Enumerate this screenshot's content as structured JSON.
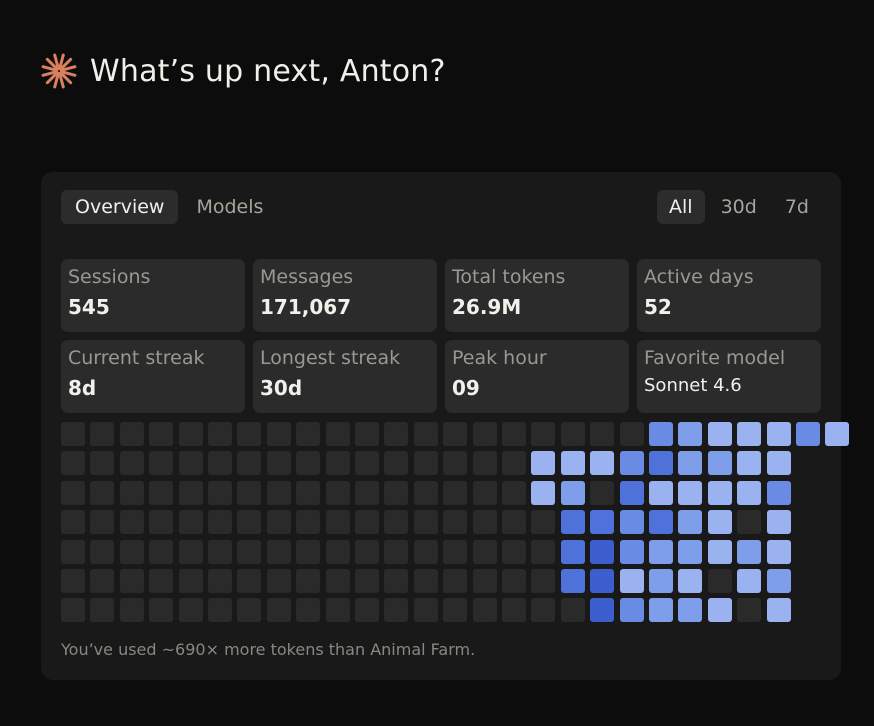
{
  "greeting": {
    "icon": "sparkle-icon",
    "accent": "#d9805f",
    "text": "What’s up next, Anton?"
  },
  "tabs": [
    {
      "label": "Overview",
      "active": true
    },
    {
      "label": "Models",
      "active": false
    }
  ],
  "range": [
    {
      "label": "All",
      "active": true
    },
    {
      "label": "30d",
      "active": false
    },
    {
      "label": "7d",
      "active": false
    }
  ],
  "stats": [
    {
      "label": "Sessions",
      "value": "545"
    },
    {
      "label": "Messages",
      "value": "171,067"
    },
    {
      "label": "Total tokens",
      "value": "26.9M"
    },
    {
      "label": "Active days",
      "value": "52"
    },
    {
      "label": "Current streak",
      "value": "8d"
    },
    {
      "label": "Longest streak",
      "value": "30d"
    },
    {
      "label": "Peak hour",
      "value": "09"
    },
    {
      "label": "Favorite model",
      "value": "Sonnet 4.6"
    }
  ],
  "heatmap": {
    "colors": [
      "#2a2a2a",
      "#9ab2ef",
      "#7f9ee9",
      "#6a8be4",
      "#4f72da",
      "#3d5fcd"
    ],
    "rows": [
      [
        0,
        0,
        0,
        0,
        0,
        0,
        0,
        0,
        0,
        0,
        0,
        0,
        0,
        0,
        0,
        0,
        0,
        0,
        0,
        0,
        3,
        2,
        1,
        1,
        1,
        3,
        1
      ],
      [
        0,
        0,
        0,
        0,
        0,
        0,
        0,
        0,
        0,
        0,
        0,
        0,
        0,
        0,
        0,
        0,
        1,
        1,
        1,
        3,
        4,
        2,
        2,
        1,
        1,
        -1,
        -1
      ],
      [
        0,
        0,
        0,
        0,
        0,
        0,
        0,
        0,
        0,
        0,
        0,
        0,
        0,
        0,
        0,
        0,
        1,
        2,
        0,
        4,
        1,
        1,
        1,
        1,
        3,
        -1,
        -1
      ],
      [
        0,
        0,
        0,
        0,
        0,
        0,
        0,
        0,
        0,
        0,
        0,
        0,
        0,
        0,
        0,
        0,
        0,
        4,
        4,
        3,
        4,
        2,
        1,
        0,
        1,
        -1,
        -1
      ],
      [
        0,
        0,
        0,
        0,
        0,
        0,
        0,
        0,
        0,
        0,
        0,
        0,
        0,
        0,
        0,
        0,
        0,
        4,
        5,
        3,
        2,
        2,
        1,
        2,
        1,
        -1,
        -1
      ],
      [
        0,
        0,
        0,
        0,
        0,
        0,
        0,
        0,
        0,
        0,
        0,
        0,
        0,
        0,
        0,
        0,
        0,
        4,
        5,
        1,
        2,
        1,
        0,
        1,
        2,
        -1,
        -1
      ],
      [
        0,
        0,
        0,
        0,
        0,
        0,
        0,
        0,
        0,
        0,
        0,
        0,
        0,
        0,
        0,
        0,
        0,
        0,
        5,
        3,
        2,
        2,
        1,
        0,
        1,
        -1,
        -1
      ]
    ]
  },
  "footnote": "You’ve used ~690× more tokens than Animal Farm."
}
